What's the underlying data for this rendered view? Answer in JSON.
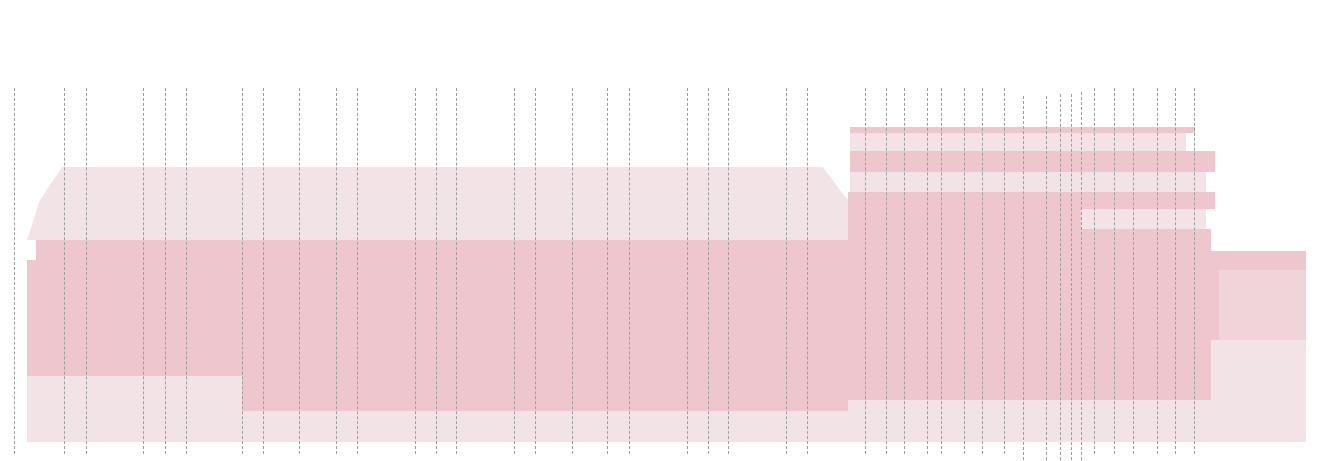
{
  "palette": {
    "light": "#f1e3e6",
    "pink": "#eec6cd",
    "mid": "#f1d4d9",
    "grid": "#9e9e9e"
  },
  "diagram": {
    "type": "building-elevation",
    "grid_line_count": 48
  }
}
